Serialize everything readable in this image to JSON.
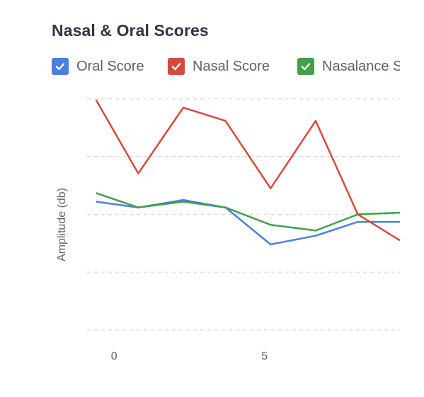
{
  "chart_data": {
    "type": "line",
    "title": "Nasal & Oral Scores",
    "ylabel": "Amplitude (db)",
    "xlabel": "",
    "x": [
      -0.6,
      0.8,
      2.3,
      3.7,
      5.2,
      6.7,
      8.1,
      9.5
    ],
    "x_ticks": [
      0,
      5
    ],
    "xlim": [
      -0.9,
      9.5
    ],
    "ylim": [
      0,
      4
    ],
    "y_gridlines": [
      0,
      1,
      2,
      3,
      4
    ],
    "grid": true,
    "legend": "top",
    "series": [
      {
        "name": "Oral Score",
        "color": "#4a7fe0",
        "values": [
          2.22,
          2.12,
          2.25,
          2.12,
          1.48,
          1.63,
          1.87,
          1.87
        ]
      },
      {
        "name": "Nasal Score",
        "color": "#d64a3b",
        "values": [
          3.98,
          2.71,
          3.85,
          3.62,
          2.45,
          3.62,
          2.0,
          1.55
        ]
      },
      {
        "name": "Nasalance Score",
        "color": "#43a047",
        "values": [
          2.37,
          2.12,
          2.22,
          2.12,
          1.82,
          1.72,
          2.0,
          2.03
        ]
      }
    ]
  }
}
